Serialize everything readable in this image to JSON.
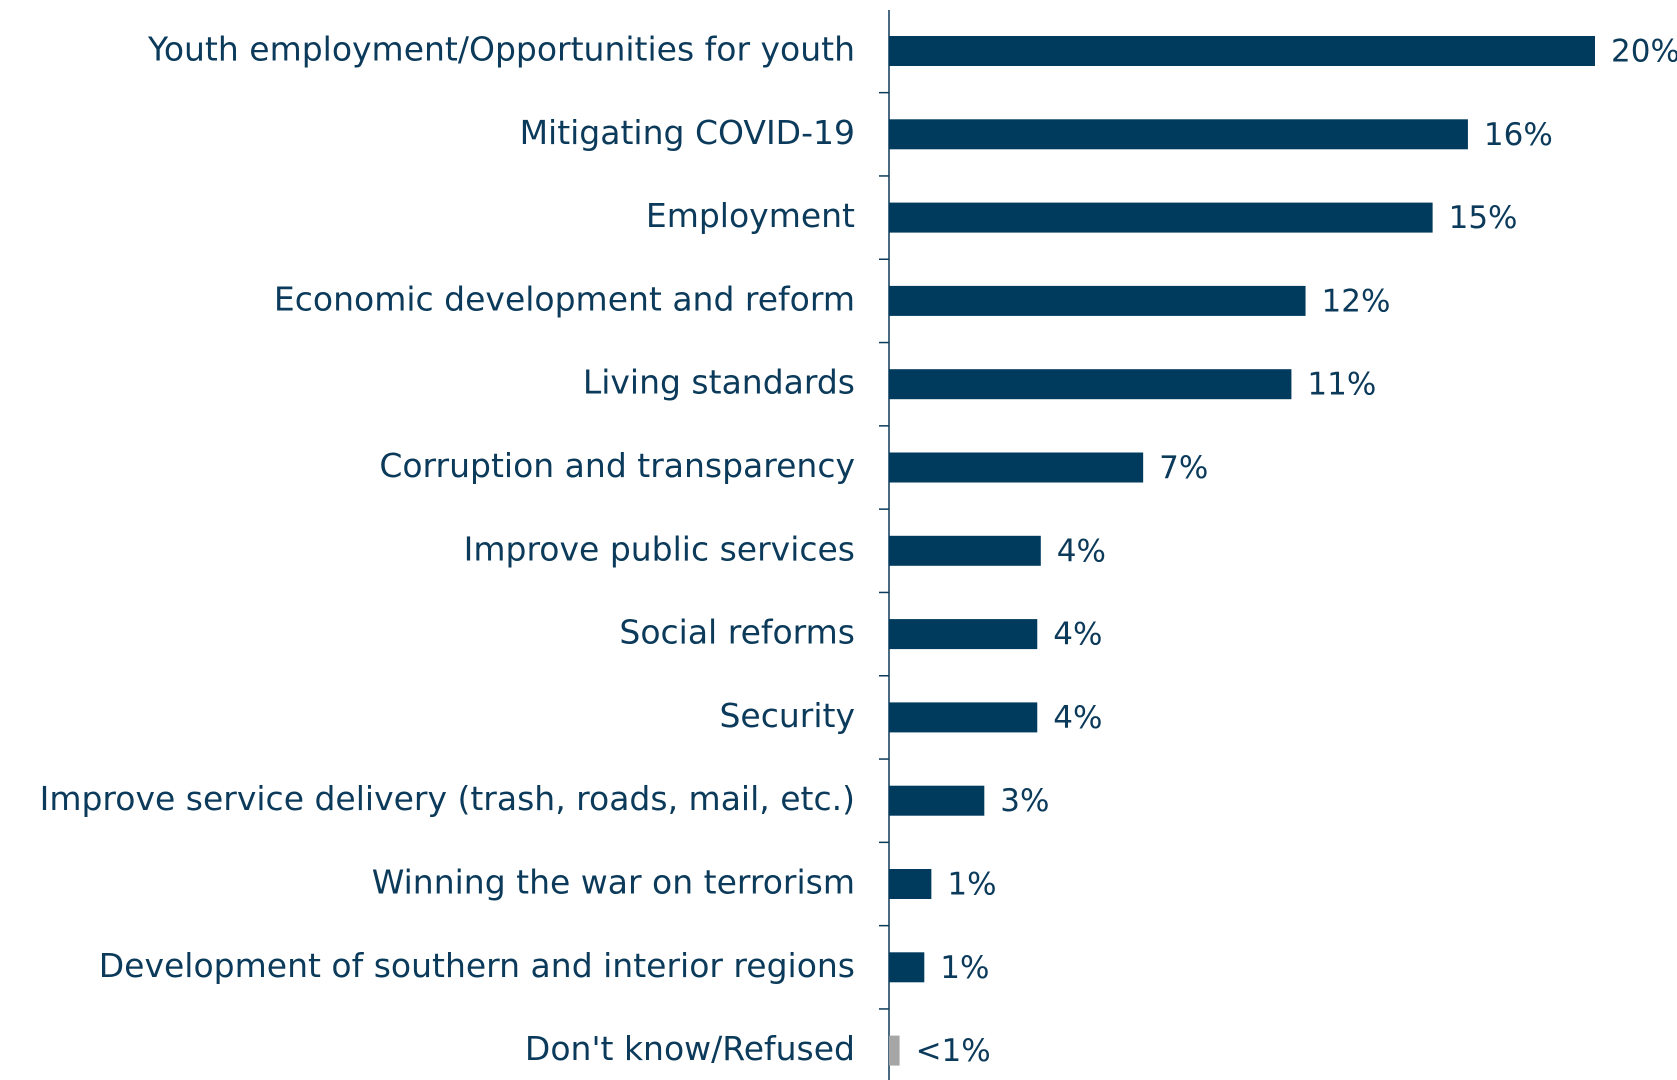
{
  "chart_data": {
    "type": "bar",
    "orientation": "horizontal",
    "title": "",
    "xlabel": "",
    "ylabel": "",
    "xlim": [
      0,
      20
    ],
    "grid": false,
    "legend": "none",
    "categories": [
      "Youth employment/Opportunities for youth",
      "Mitigating COVID-19",
      "Employment",
      "Economic development and reform",
      "Living standards",
      "Corruption and transparency",
      "Improve public services",
      "Social reforms",
      "Security",
      "Improve service delivery (trash, roads, mail, etc.)",
      "Winning the war on terrorism",
      "Development of southern and interior regions",
      "Don't know/Refused"
    ],
    "values": [
      20,
      16.4,
      15.4,
      11.8,
      11.4,
      7.2,
      4.3,
      4.2,
      4.2,
      2.7,
      1.2,
      1.0,
      0.3
    ],
    "value_labels": [
      "20%",
      "16%",
      "15%",
      "12%",
      "11%",
      "7%",
      "4%",
      "4%",
      "4%",
      "3%",
      "1%",
      "1%",
      "<1%"
    ],
    "colors": {
      "bar": "#003a5c",
      "bar_dont_know": "#a6a6a6",
      "text": "#0b3a5a",
      "axis": "#0b3a5a"
    },
    "highlight_category": "Don't know/Refused"
  }
}
